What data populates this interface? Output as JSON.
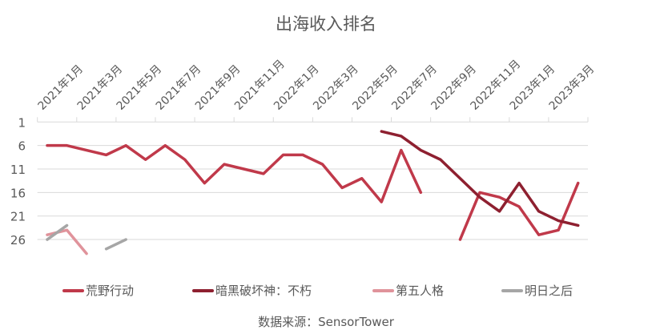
{
  "chart_data": {
    "type": "line",
    "title": "出海收入排名",
    "source": "数据来源：SensorTower",
    "x_tick_labels": [
      "2021年1月",
      "2021年3月",
      "2021年5月",
      "2021年7月",
      "2021年9月",
      "2021年11月",
      "2022年1月",
      "2022年3月",
      "2022年5月",
      "2022年7月",
      "2022年9月",
      "2022年11月",
      "2023年1月",
      "2023年3月"
    ],
    "x_position": "top",
    "y_reversed": true,
    "ylim": [
      1,
      31
    ],
    "y_ticks": [
      "1",
      "6",
      "11",
      "16",
      "21",
      "26"
    ],
    "grid": true,
    "legend": "bottom",
    "series": [
      {
        "name": "荒野行动",
        "color": "#c0394a",
        "values": [
          6,
          6,
          7,
          8,
          6,
          9,
          6,
          9,
          14,
          10,
          11,
          12,
          8,
          8,
          10,
          15,
          13,
          18,
          7,
          16,
          null,
          26,
          16,
          17,
          19,
          25,
          24,
          14
        ]
      },
      {
        "name": "暗黑破坏神：不朽",
        "color": "#8e2030",
        "values": [
          null,
          null,
          null,
          null,
          null,
          null,
          null,
          null,
          null,
          null,
          null,
          null,
          null,
          null,
          null,
          null,
          null,
          3,
          4,
          7,
          9,
          13,
          17,
          20,
          14,
          20,
          22,
          23
        ]
      },
      {
        "name": "第五人格",
        "color": "#e0939b",
        "values": [
          25,
          24,
          29,
          null,
          null,
          null,
          null,
          null,
          null,
          null,
          null,
          null,
          null,
          null,
          null,
          null,
          null,
          null,
          null,
          null,
          null,
          null,
          null,
          null,
          null,
          null,
          null,
          null
        ]
      },
      {
        "name": "明日之后",
        "color": "#a6a6a6",
        "values": [
          26,
          23,
          null,
          28,
          26,
          null,
          null,
          null,
          null,
          null,
          null,
          null,
          null,
          null,
          null,
          null,
          null,
          null,
          null,
          null,
          null,
          null,
          null,
          null,
          null,
          null,
          null,
          null
        ]
      }
    ]
  }
}
